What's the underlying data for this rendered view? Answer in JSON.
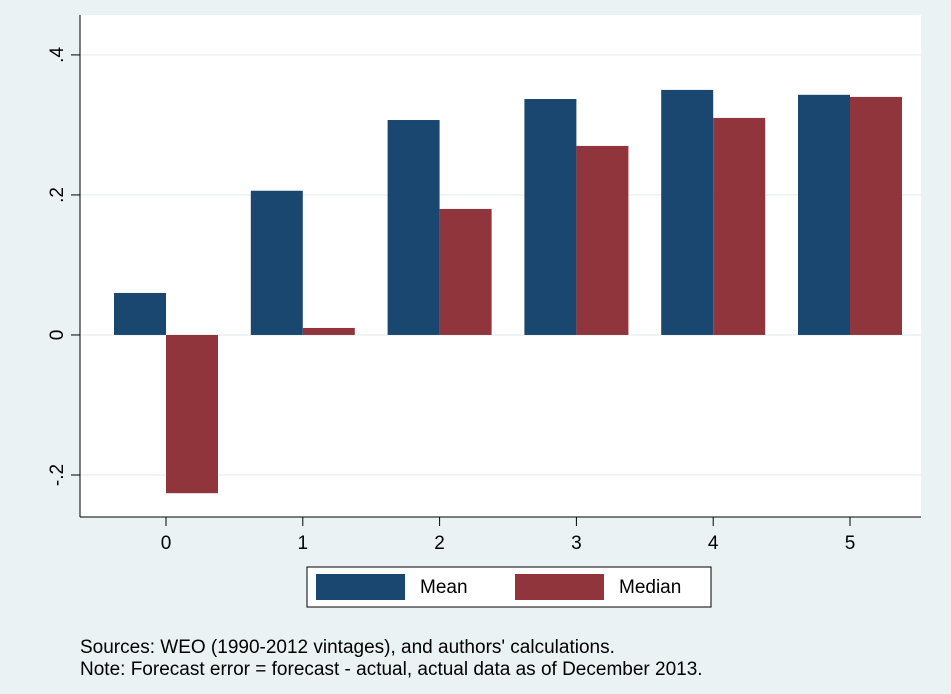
{
  "chart_data": {
    "type": "bar",
    "categories": [
      "0",
      "1",
      "2",
      "3",
      "4",
      "5"
    ],
    "series": [
      {
        "name": "Mean",
        "color": "#1a476f",
        "values": [
          0.06,
          0.206,
          0.307,
          0.337,
          0.35,
          0.343
        ]
      },
      {
        "name": "Median",
        "color": "#90353b",
        "values": [
          -0.226,
          0.01,
          0.18,
          0.27,
          0.31,
          0.34
        ]
      }
    ],
    "ylim": [
      -0.26,
      0.457
    ],
    "yticks": [
      {
        "value": -0.2,
        "label": "-.2"
      },
      0,
      {
        "value": 0.2,
        "label": ".2"
      },
      {
        "value": 0.4,
        "label": ".4"
      }
    ],
    "grid": true,
    "legend": "bottom",
    "notes": [
      "Sources: WEO (1990-2012 vintages), and authors' calculations.",
      "Note: Forecast error = forecast - actual, actual data as of December 2013."
    ]
  }
}
